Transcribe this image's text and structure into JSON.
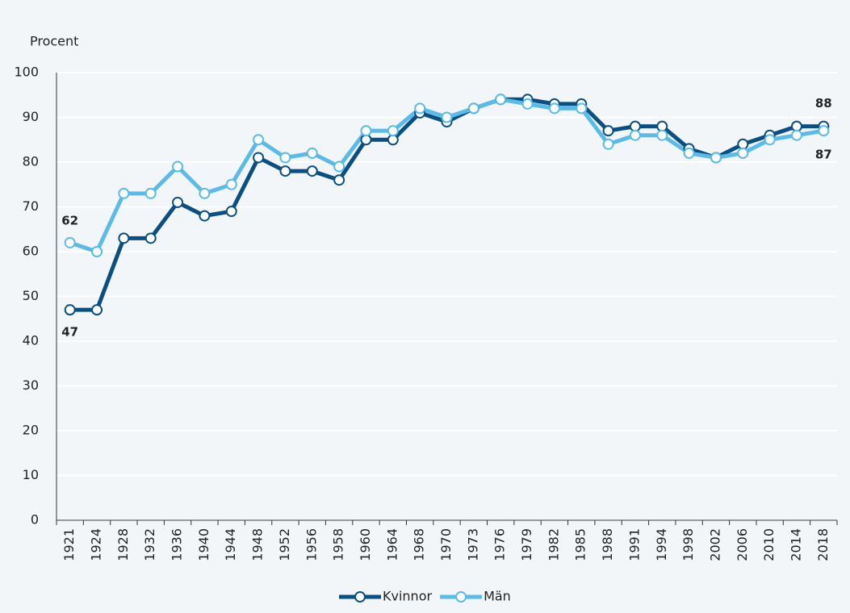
{
  "chart_data": {
    "type": "line",
    "ylabel": "Procent",
    "categories": [
      "1921",
      "1924",
      "1928",
      "1932",
      "1936",
      "1940",
      "1944",
      "1948",
      "1952",
      "1956",
      "1958",
      "1960",
      "1964",
      "1968",
      "1970",
      "1973",
      "1976",
      "1979",
      "1982",
      "1985",
      "1988",
      "1991",
      "1994",
      "1998",
      "2002",
      "2006",
      "2010",
      "2014",
      "2018"
    ],
    "series": [
      {
        "name": "Kvinnor",
        "color": "#0b4f82",
        "values": [
          47,
          47,
          63,
          63,
          71,
          68,
          69,
          81,
          78,
          78,
          76,
          85,
          85,
          91,
          89,
          92,
          94,
          94,
          93,
          93,
          87,
          88,
          88,
          83,
          81,
          84,
          86,
          88,
          88
        ]
      },
      {
        "name": "Män",
        "color": "#5bbbe8",
        "values": [
          62,
          60,
          73,
          73,
          79,
          73,
          75,
          85,
          81,
          82,
          79,
          87,
          87,
          92,
          90,
          92,
          94,
          93,
          92,
          92,
          84,
          86,
          86,
          82,
          81,
          82,
          85,
          86,
          87
        ]
      }
    ],
    "ylim": [
      0,
      100
    ],
    "yticks": [
      0,
      10,
      20,
      30,
      40,
      50,
      60,
      70,
      80,
      90,
      100
    ],
    "grid": true,
    "legend": "bottom"
  }
}
